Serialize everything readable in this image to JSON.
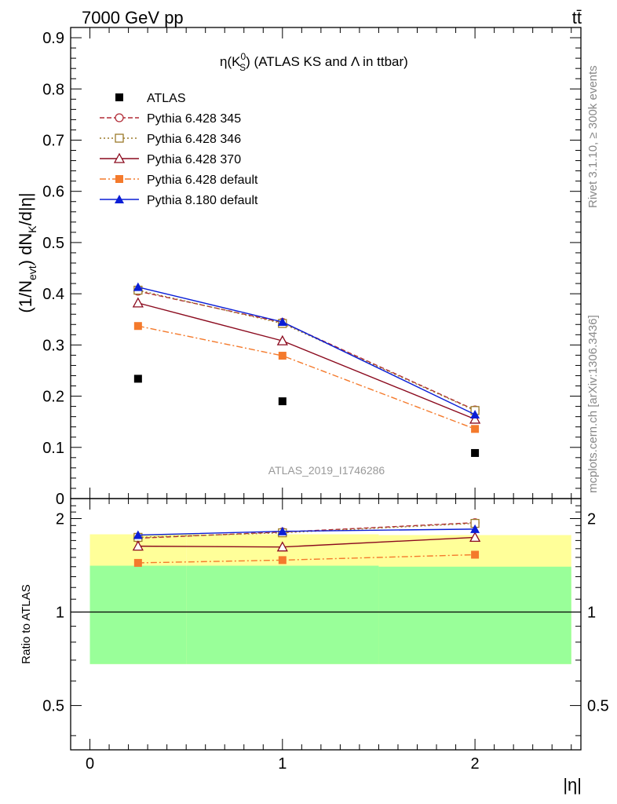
{
  "header": {
    "left_label": "7000 GeV pp",
    "right_label": "tt̄"
  },
  "side_labels": {
    "rivet": "Rivet 3.1.10, ≥ 300k events",
    "mcplots": "mcplots.cern.ch [arXiv:1306.3436]"
  },
  "chart_data": {
    "type": "line",
    "title_parts": [
      "η(K",
      "0",
      "S",
      ") (ATLAS KS and Λ in ttbar)"
    ],
    "ylabel_parts": [
      "(1/N",
      "evt",
      ") dN",
      "K",
      "/d|η|"
    ],
    "xlabel": "|η|",
    "analysis_label": "ATLAS_2019_I1746286",
    "xlim": [
      -0.1,
      2.55
    ],
    "ylim": [
      0,
      0.92
    ],
    "yticks": [
      0,
      0.1,
      0.2,
      0.3,
      0.4,
      0.5,
      0.6,
      0.7,
      0.8,
      0.9
    ],
    "ytick_labels": [
      "0",
      "0.1",
      "0.2",
      "0.3",
      "0.4",
      "0.5",
      "0.6",
      "0.7",
      "0.8",
      "0.9"
    ],
    "xticks": [
      0,
      1,
      2
    ],
    "xtick_labels": [
      "0",
      "1",
      "2"
    ],
    "x": [
      0.25,
      1.0,
      2.0
    ],
    "series": [
      {
        "name": "ATLAS",
        "values": [
          0.234,
          0.19,
          0.089
        ],
        "color": "#000000",
        "marker": "square-filled",
        "line": "none"
      },
      {
        "name": "Pythia 6.428 345",
        "values": [
          0.405,
          0.344,
          0.173
        ],
        "color": "#b22b36",
        "marker": "circle-open",
        "line": "dashed"
      },
      {
        "name": "Pythia 6.428 346",
        "values": [
          0.407,
          0.342,
          0.172
        ],
        "color": "#9b7a2a",
        "marker": "square-open",
        "line": "dotted"
      },
      {
        "name": "Pythia 6.428 370",
        "values": [
          0.382,
          0.308,
          0.155
        ],
        "color": "#8b0a1e",
        "marker": "triangle-open",
        "line": "solid"
      },
      {
        "name": "Pythia 6.428 default",
        "values": [
          0.337,
          0.279,
          0.136
        ],
        "color": "#f47a2c",
        "marker": "square-filled",
        "line": "dashdot"
      },
      {
        "name": "Pythia 8.180 default",
        "values": [
          0.413,
          0.345,
          0.164
        ],
        "color": "#0a1ed6",
        "marker": "triangle-filled",
        "line": "solid"
      }
    ],
    "ratio": {
      "ylabel": "Ratio to ATLAS",
      "ylim": [
        0.36,
        2.32
      ],
      "yticks": [
        0.5,
        1,
        2
      ],
      "ytick_labels": [
        "0.5",
        "1",
        "2"
      ],
      "band_edges": [
        0,
        0.5,
        1.5,
        2.5
      ],
      "yellow_band": [
        [
          0.68,
          1.78
        ],
        [
          0.68,
          1.78
        ],
        [
          0.68,
          1.77
        ]
      ],
      "green_band": [
        [
          0.68,
          1.41
        ],
        [
          0.68,
          1.41
        ],
        [
          0.68,
          1.4
        ]
      ],
      "series": [
        {
          "name": "Pythia 6.428 345",
          "values": [
            1.73,
            1.81,
            1.94
          ]
        },
        {
          "name": "Pythia 6.428 346",
          "values": [
            1.74,
            1.8,
            1.93
          ]
        },
        {
          "name": "Pythia 6.428 370",
          "values": [
            1.63,
            1.62,
            1.74
          ]
        },
        {
          "name": "Pythia 6.428 default",
          "values": [
            1.44,
            1.47,
            1.53
          ]
        },
        {
          "name": "Pythia 8.180 default",
          "values": [
            1.77,
            1.82,
            1.85
          ]
        }
      ]
    }
  }
}
